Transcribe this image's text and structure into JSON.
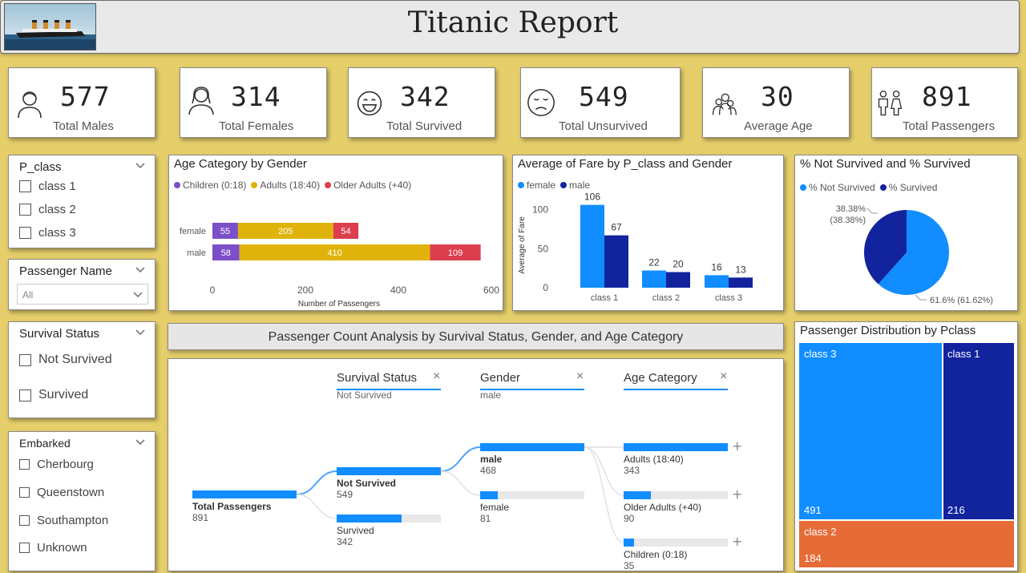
{
  "header": {
    "title": "Titanic Report"
  },
  "kpis": [
    {
      "value": "577",
      "label": "Total Males",
      "icon": "male-icon"
    },
    {
      "value": "314",
      "label": "Total Females",
      "icon": "female-icon"
    },
    {
      "value": "342",
      "label": "Total Survived",
      "icon": "happy-face-icon"
    },
    {
      "value": "549",
      "label": "Total Unsurvived",
      "icon": "sad-face-icon"
    },
    {
      "value": "30",
      "label": "Average Age",
      "icon": "age-icon"
    },
    {
      "value": "891",
      "label": "Total Passengers",
      "icon": "passengers-icon"
    }
  ],
  "slicers": {
    "pclass": {
      "title": "P_class",
      "options": [
        "class 1",
        "class 2",
        "class 3"
      ]
    },
    "passenger_name": {
      "title": "Passenger Name",
      "selected": "All"
    },
    "survival_status": {
      "title": "Survival Status",
      "options": [
        "Not Survived",
        "Survived"
      ]
    },
    "embarked": {
      "title": "Embarked",
      "options": [
        "Cherbourg",
        "Queenstown",
        "Southampton",
        "Unknown"
      ]
    }
  },
  "colors": {
    "children": "#7b4fc9",
    "adults": "#e0b30a",
    "older": "#dd3e4e",
    "female": "#118dff",
    "male": "#12239e",
    "class3": "#118dff",
    "class1": "#12239e",
    "class2": "#e66c37"
  },
  "chart_data": [
    {
      "type": "bar",
      "orientation": "horizontal-stacked",
      "title": "Age Category by Gender",
      "categories": [
        "female",
        "male"
      ],
      "series": [
        {
          "name": "Children (0:18)",
          "values": [
            55,
            58
          ]
        },
        {
          "name": "Adults (18:40)",
          "values": [
            205,
            410
          ]
        },
        {
          "name": "Older Adults (+40)",
          "values": [
            54,
            109
          ]
        }
      ],
      "xlabel": "Number of Passengers",
      "xlim": [
        0,
        600
      ],
      "xticks": [
        0,
        200,
        400,
        600
      ],
      "legend": "top-left"
    },
    {
      "type": "bar",
      "title": "Average of Fare by P_class and Gender",
      "categories": [
        "class 1",
        "class 2",
        "class 3"
      ],
      "series": [
        {
          "name": "female",
          "values": [
            106,
            22,
            16
          ]
        },
        {
          "name": "male",
          "values": [
            67,
            20,
            13
          ]
        }
      ],
      "ylabel": "Average of Fare",
      "ylim": [
        0,
        120
      ],
      "yticks": [
        0,
        50,
        100
      ],
      "legend": "top-left"
    },
    {
      "type": "pie",
      "title": "% Not Survived and % Survived",
      "slices": [
        {
          "name": "% Not Survived",
          "value": 61.62,
          "label": "61.6% (61.62%)"
        },
        {
          "name": "% Survived",
          "value": 38.38,
          "label1": "38.38%",
          "label2": "(38.38%)"
        }
      ],
      "legend": "top-left"
    },
    {
      "type": "treemap",
      "title": "Passenger Distribution by Pclass",
      "items": [
        {
          "name": "class 3",
          "value": 491
        },
        {
          "name": "class 1",
          "value": 216
        },
        {
          "name": "class 2",
          "value": 184
        }
      ]
    }
  ],
  "decomp": {
    "banner": "Passenger Count Analysis by Survival Status, Gender, and Age Category",
    "levels": [
      {
        "name": "Survival Status",
        "selected": "Not Survived"
      },
      {
        "name": "Gender",
        "selected": "male"
      },
      {
        "name": "Age Category",
        "selected": ""
      }
    ],
    "root": {
      "label": "Total Passengers",
      "value": "891"
    },
    "status_nodes": [
      {
        "label": "Not Survived",
        "value": "549",
        "frac": 1.0
      },
      {
        "label": "Survived",
        "value": "342",
        "frac": 0.62
      }
    ],
    "gender_nodes": [
      {
        "label": "male",
        "value": "468",
        "frac": 1.0
      },
      {
        "label": "female",
        "value": "81",
        "frac": 0.17
      }
    ],
    "age_nodes": [
      {
        "label": "Adults (18:40)",
        "value": "343",
        "frac": 1.0
      },
      {
        "label": "Older Adults (+40)",
        "value": "90",
        "frac": 0.26
      },
      {
        "label": "Children (0:18)",
        "value": "35",
        "frac": 0.1
      }
    ],
    "close_symbol": "×",
    "expand_symbol": "+"
  }
}
